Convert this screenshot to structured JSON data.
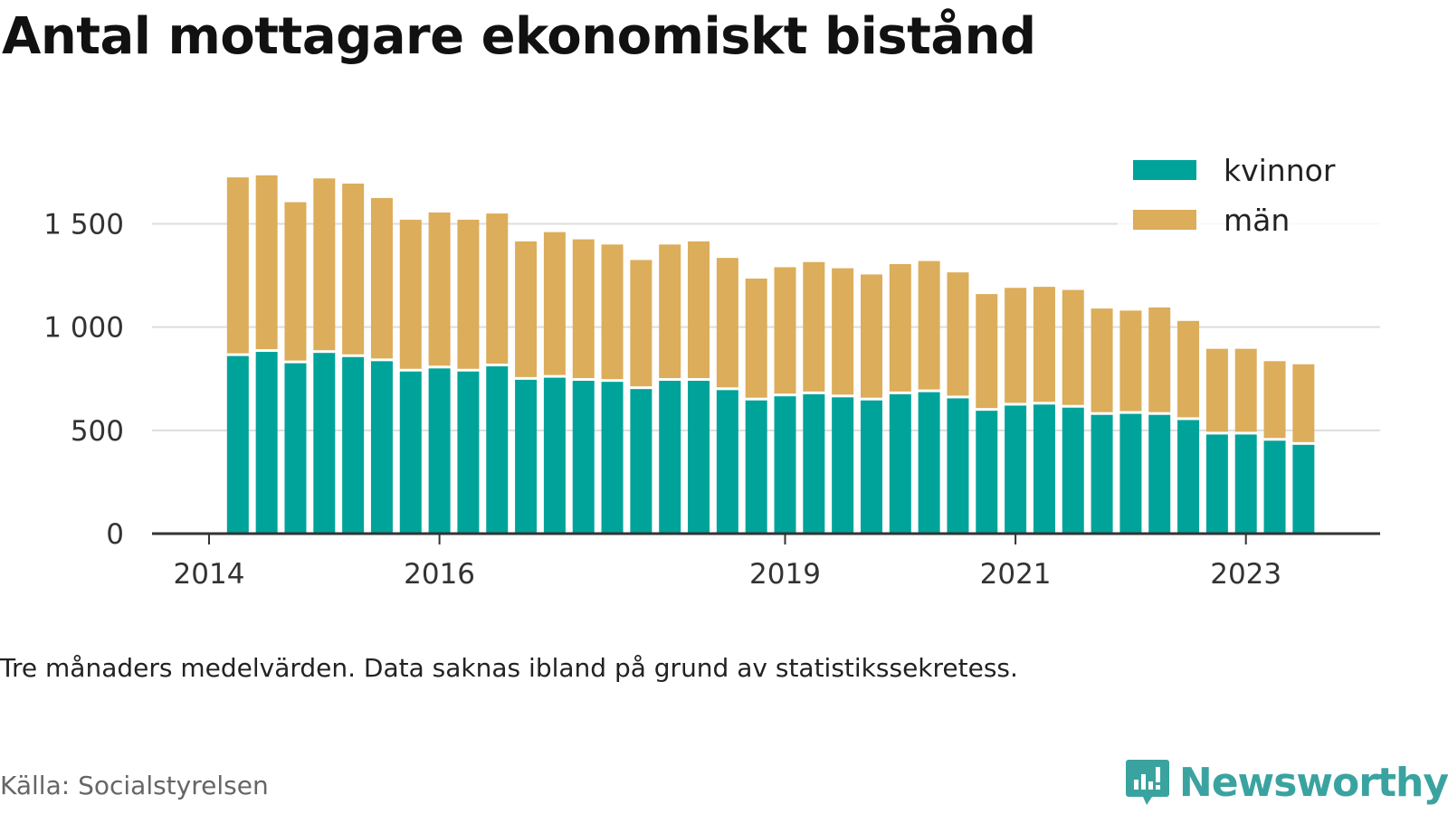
{
  "title": "Antal mottagare ekonomiskt bistånd",
  "note": "Tre månaders medelvärden. Data saknas ibland på grund av statistikssekretess.",
  "source": "Källa: Socialstyrelsen",
  "brand": "Newsworthy",
  "colors": {
    "kvinnor": "#00a39a",
    "man": "#dcad5a",
    "grid": "#dddddd",
    "axis": "#333333",
    "brand": "#3aa3a0"
  },
  "chart_data": {
    "type": "bar",
    "stacked": true,
    "title": "Antal mottagare ekonomiskt bistånd",
    "xlabel": "",
    "ylabel": "",
    "ylim": [
      0,
      1800
    ],
    "yticks": [
      0,
      500,
      1000,
      1500
    ],
    "ytick_labels": [
      "0",
      "500",
      "1 000",
      "1 500"
    ],
    "xticks": [
      "2014",
      "2016",
      "2019",
      "2021",
      "2023"
    ],
    "xtick_positions": [
      2014.0,
      2016.0,
      2019.0,
      2021.0,
      2023.0
    ],
    "grid": true,
    "legend": "top-right",
    "x": [
      2014.25,
      2014.5,
      2014.75,
      2015.0,
      2015.25,
      2015.5,
      2015.75,
      2016.0,
      2016.25,
      2016.5,
      2016.75,
      2017.0,
      2017.25,
      2017.5,
      2017.75,
      2018.0,
      2018.25,
      2018.5,
      2018.75,
      2019.0,
      2019.25,
      2019.5,
      2019.75,
      2020.0,
      2020.25,
      2020.5,
      2020.75,
      2021.0,
      2021.25,
      2021.5,
      2021.75,
      2022.0,
      2022.25,
      2022.5,
      2022.75,
      2023.0,
      2023.25,
      2023.5
    ],
    "series": [
      {
        "name": "kvinnor",
        "values": [
          860,
          880,
          825,
          875,
          855,
          835,
          785,
          800,
          785,
          810,
          745,
          755,
          740,
          735,
          700,
          740,
          740,
          695,
          645,
          665,
          675,
          660,
          645,
          675,
          685,
          655,
          595,
          620,
          625,
          610,
          575,
          580,
          575,
          550,
          480,
          480,
          450,
          430
        ]
      },
      {
        "name": "män",
        "values": [
          865,
          855,
          780,
          845,
          840,
          790,
          735,
          755,
          735,
          740,
          670,
          705,
          685,
          665,
          625,
          660,
          675,
          640,
          590,
          625,
          640,
          625,
          610,
          630,
          635,
          610,
          565,
          570,
          570,
          570,
          515,
          500,
          520,
          480,
          415,
          415,
          385,
          390
        ]
      }
    ]
  }
}
